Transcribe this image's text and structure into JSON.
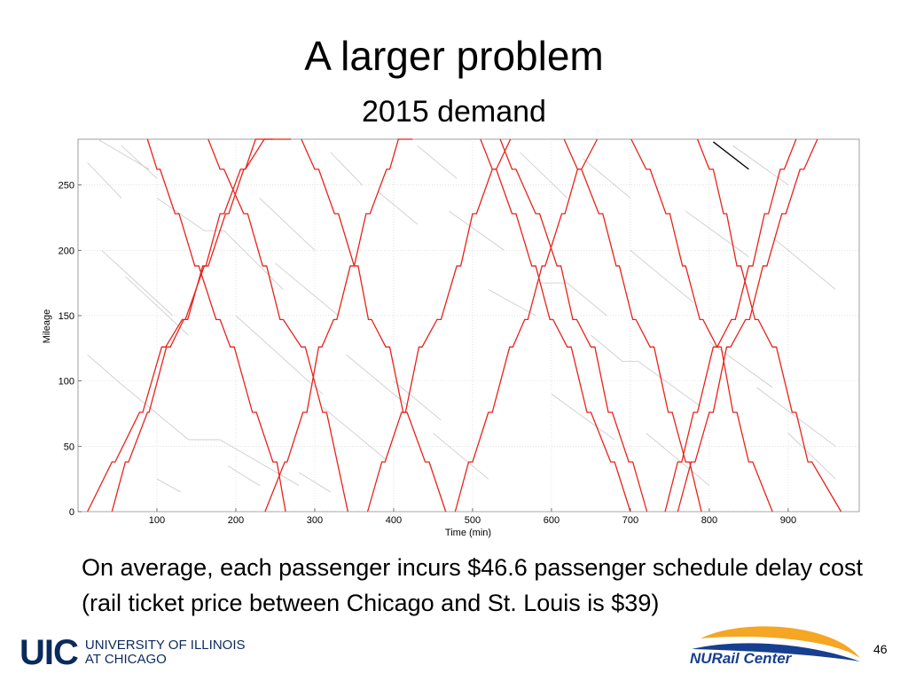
{
  "slide": {
    "title": "A larger problem",
    "subtitle": "2015 demand",
    "body": "On average, each passenger incurs $46.6 passenger schedule delay cost (rail ticket price between Chicago and St. Louis is $39)",
    "page_number": "46"
  },
  "logos": {
    "uic_mark": "UIC",
    "uic_line1": "UNIVERSITY OF ILLINOIS",
    "uic_line2": "AT CHICAGO",
    "nurail": "NURail Center"
  },
  "chart_data": {
    "type": "line",
    "xlabel": "Time (min)",
    "ylabel": "Mileage",
    "xlim": [
      0,
      990
    ],
    "ylim": [
      0,
      285
    ],
    "xticks": [
      100,
      200,
      300,
      400,
      500,
      600,
      700,
      800,
      900
    ],
    "yticks": [
      0,
      50,
      100,
      150,
      200,
      250
    ],
    "grid": true,
    "colors": {
      "trains": "#e8221a",
      "passengers": "#c8c8c8",
      "highlight": "#000000"
    },
    "train_trajectories": [
      {
        "t": [
          12,
          43,
          47,
          78,
          82,
          106,
          111,
          132,
          136,
          160,
          165,
          187,
          191,
          210,
          212,
          225,
          228,
          247
        ],
        "y": [
          0,
          38,
          38,
          76,
          76,
          126,
          126,
          147,
          147,
          188,
          188,
          228,
          228,
          262,
          262,
          285,
          285,
          285
        ]
      },
      {
        "t": [
          43,
          60,
          64,
          88,
          90,
          112,
          117,
          134,
          139,
          158,
          162,
          180,
          185,
          206,
          212,
          236,
          241,
          270
        ],
        "y": [
          0,
          38,
          38,
          76,
          76,
          126,
          126,
          147,
          147,
          188,
          188,
          228,
          228,
          262,
          262,
          285,
          285,
          285
        ]
      },
      {
        "t": [
          88,
          100,
          104,
          123,
          128,
          148,
          153,
          175,
          180,
          193,
          198,
          221,
          226,
          247,
          252,
          263
        ],
        "y": [
          285,
          262,
          262,
          228,
          228,
          188,
          188,
          147,
          147,
          126,
          126,
          76,
          76,
          38,
          38,
          0
        ]
      },
      {
        "t": [
          165,
          180,
          185,
          210,
          215,
          234,
          239,
          256,
          260,
          283,
          288,
          310,
          315,
          342
        ],
        "y": [
          285,
          262,
          262,
          228,
          228,
          188,
          188,
          147,
          147,
          126,
          126,
          76,
          76,
          0
        ]
      },
      {
        "t": [
          237,
          262,
          265,
          285,
          290,
          305,
          309,
          324,
          328,
          345,
          350,
          365,
          370,
          391,
          395,
          406,
          410,
          424
        ],
        "y": [
          0,
          38,
          38,
          76,
          76,
          126,
          126,
          147,
          147,
          188,
          188,
          228,
          228,
          262,
          262,
          285,
          285,
          285
        ]
      },
      {
        "t": [
          283,
          300,
          305,
          325,
          330,
          350,
          355,
          368,
          372,
          390,
          395,
          412,
          417,
          440,
          445,
          466
        ],
        "y": [
          285,
          262,
          262,
          228,
          228,
          188,
          188,
          147,
          147,
          126,
          126,
          76,
          76,
          38,
          38,
          0
        ]
      },
      {
        "t": [
          367,
          385,
          389,
          410,
          415,
          432,
          436,
          455,
          460,
          480,
          485,
          500,
          505,
          525,
          530,
          548
        ],
        "y": [
          0,
          38,
          38,
          76,
          76,
          126,
          126,
          147,
          147,
          188,
          188,
          228,
          228,
          262,
          262,
          285
        ]
      },
      {
        "t": [
          478,
          495,
          500,
          520,
          525,
          547,
          551,
          566,
          570,
          588,
          592,
          613,
          617,
          633,
          638,
          658
        ],
        "y": [
          0,
          38,
          38,
          76,
          76,
          126,
          126,
          147,
          147,
          188,
          188,
          228,
          228,
          262,
          262,
          285
        ]
      },
      {
        "t": [
          510,
          525,
          530,
          550,
          555,
          575,
          580,
          598,
          602,
          620,
          625,
          645,
          650,
          675,
          680,
          700
        ],
        "y": [
          285,
          262,
          262,
          228,
          228,
          188,
          188,
          147,
          147,
          126,
          126,
          76,
          76,
          38,
          38,
          0
        ]
      },
      {
        "t": [
          535,
          550,
          555,
          580,
          585,
          607,
          612,
          627,
          632,
          650,
          655,
          672,
          677,
          698,
          703,
          721
        ],
        "y": [
          285,
          262,
          262,
          228,
          228,
          188,
          188,
          147,
          147,
          126,
          126,
          76,
          76,
          38,
          38,
          0
        ]
      },
      {
        "t": [
          616,
          633,
          638,
          660,
          665,
          682,
          686,
          703,
          707,
          725,
          730,
          748,
          753,
          770,
          775,
          790
        ],
        "y": [
          285,
          262,
          262,
          228,
          228,
          188,
          188,
          147,
          147,
          126,
          126,
          76,
          76,
          38,
          38,
          0
        ]
      },
      {
        "t": [
          701,
          720,
          725,
          745,
          750,
          766,
          770,
          788,
          792,
          810,
          815,
          830,
          835,
          850,
          855,
          880
        ],
        "y": [
          285,
          262,
          262,
          228,
          228,
          188,
          188,
          147,
          147,
          126,
          126,
          76,
          76,
          38,
          38,
          0
        ]
      },
      {
        "t": [
          744,
          760,
          765,
          780,
          785,
          805,
          810,
          828,
          833,
          850,
          855,
          870,
          875,
          890,
          895,
          910
        ],
        "y": [
          0,
          38,
          38,
          76,
          76,
          126,
          126,
          147,
          147,
          188,
          188,
          228,
          228,
          262,
          262,
          285
        ]
      },
      {
        "t": [
          760,
          777,
          782,
          800,
          805,
          822,
          827,
          846,
          851,
          868,
          873,
          892,
          897,
          915,
          920,
          937
        ],
        "y": [
          0,
          38,
          38,
          76,
          76,
          126,
          126,
          147,
          147,
          188,
          188,
          228,
          228,
          262,
          262,
          285
        ]
      },
      {
        "t": [
          785,
          800,
          805,
          818,
          822,
          835,
          840,
          858,
          862,
          880,
          885,
          905,
          910,
          925,
          930,
          967
        ],
        "y": [
          285,
          262,
          262,
          228,
          228,
          188,
          188,
          147,
          147,
          126,
          126,
          76,
          76,
          38,
          38,
          0
        ]
      }
    ],
    "highlight_segment": {
      "t": [
        805,
        850
      ],
      "y": [
        283,
        262
      ]
    },
    "passenger_segments": [
      {
        "t": [
          12,
          55
        ],
        "y": [
          267,
          240
        ]
      },
      {
        "t": [
          25,
          90
        ],
        "y": [
          285,
          262
        ]
      },
      {
        "t": [
          55,
          100
        ],
        "y": [
          280,
          255
        ]
      },
      {
        "t": [
          100,
          160
        ],
        "y": [
          240,
          215
        ]
      },
      {
        "t": [
          160,
          185
        ],
        "y": [
          215,
          215
        ]
      },
      {
        "t": [
          185,
          260
        ],
        "y": [
          215,
          170
        ]
      },
      {
        "t": [
          12,
          50
        ],
        "y": [
          120,
          100
        ]
      },
      {
        "t": [
          50,
          110
        ],
        "y": [
          100,
          70
        ]
      },
      {
        "t": [
          110,
          140
        ],
        "y": [
          70,
          55
        ]
      },
      {
        "t": [
          140,
          180
        ],
        "y": [
          55,
          55
        ]
      },
      {
        "t": [
          180,
          280
        ],
        "y": [
          55,
          20
        ]
      },
      {
        "t": [
          30,
          120
        ],
        "y": [
          200,
          150
        ]
      },
      {
        "t": [
          60,
          140
        ],
        "y": [
          180,
          135
        ]
      },
      {
        "t": [
          200,
          310
        ],
        "y": [
          150,
          90
        ]
      },
      {
        "t": [
          230,
          300
        ],
        "y": [
          240,
          200
        ]
      },
      {
        "t": [
          250,
          330
        ],
        "y": [
          190,
          150
        ]
      },
      {
        "t": [
          310,
          390
        ],
        "y": [
          80,
          40
        ]
      },
      {
        "t": [
          320,
          360
        ],
        "y": [
          275,
          250
        ]
      },
      {
        "t": [
          340,
          420
        ],
        "y": [
          120,
          80
        ]
      },
      {
        "t": [
          380,
          430
        ],
        "y": [
          245,
          220
        ]
      },
      {
        "t": [
          400,
          460
        ],
        "y": [
          100,
          70
        ]
      },
      {
        "t": [
          430,
          480
        ],
        "y": [
          280,
          255
        ]
      },
      {
        "t": [
          450,
          520
        ],
        "y": [
          60,
          25
        ]
      },
      {
        "t": [
          470,
          540
        ],
        "y": [
          230,
          200
        ]
      },
      {
        "t": [
          520,
          580
        ],
        "y": [
          170,
          150
        ]
      },
      {
        "t": [
          560,
          620
        ],
        "y": [
          275,
          240
        ]
      },
      {
        "t": [
          580,
          620
        ],
        "y": [
          175,
          175
        ]
      },
      {
        "t": [
          620,
          670
        ],
        "y": [
          175,
          150
        ]
      },
      {
        "t": [
          600,
          680
        ],
        "y": [
          90,
          55
        ]
      },
      {
        "t": [
          640,
          700
        ],
        "y": [
          270,
          240
        ]
      },
      {
        "t": [
          650,
          690
        ],
        "y": [
          135,
          115
        ]
      },
      {
        "t": [
          690,
          710
        ],
        "y": [
          115,
          115
        ]
      },
      {
        "t": [
          710,
          790
        ],
        "y": [
          115,
          80
        ]
      },
      {
        "t": [
          700,
          780
        ],
        "y": [
          200,
          160
        ]
      },
      {
        "t": [
          720,
          800
        ],
        "y": [
          60,
          20
        ]
      },
      {
        "t": [
          770,
          850
        ],
        "y": [
          230,
          195
        ]
      },
      {
        "t": [
          800,
          880
        ],
        "y": [
          130,
          95
        ]
      },
      {
        "t": [
          830,
          900
        ],
        "y": [
          280,
          250
        ]
      },
      {
        "t": [
          860,
          960
        ],
        "y": [
          95,
          50
        ]
      },
      {
        "t": [
          880,
          960
        ],
        "y": [
          210,
          170
        ]
      },
      {
        "t": [
          900,
          960
        ],
        "y": [
          60,
          25
        ]
      },
      {
        "t": [
          100,
          130
        ],
        "y": [
          25,
          15
        ]
      },
      {
        "t": [
          190,
          230
        ],
        "y": [
          35,
          20
        ]
      },
      {
        "t": [
          280,
          320
        ],
        "y": [
          30,
          15
        ]
      }
    ]
  }
}
